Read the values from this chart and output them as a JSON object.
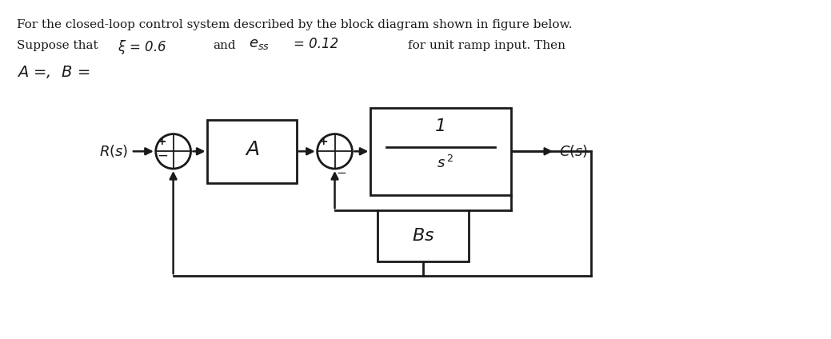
{
  "bg_color": "#ffffff",
  "text_color": "#1a1a1a",
  "line_color": "#1a1a1a",
  "fig_width": 10.39,
  "fig_height": 4.24,
  "dpi": 100,
  "line1": "For the closed-loop control system described by the block diagram shown in figure below.",
  "line2_sup": "Suppose that",
  "line2_xi": "ξ = 0.6",
  "line2_and": "and",
  "line2_ess_label": "e",
  "line2_ess_sub": "ss",
  "line2_ess_val": "= 0.12",
  "line2_rest": "for unit ramp input. Then",
  "line3": "A =,  B ="
}
